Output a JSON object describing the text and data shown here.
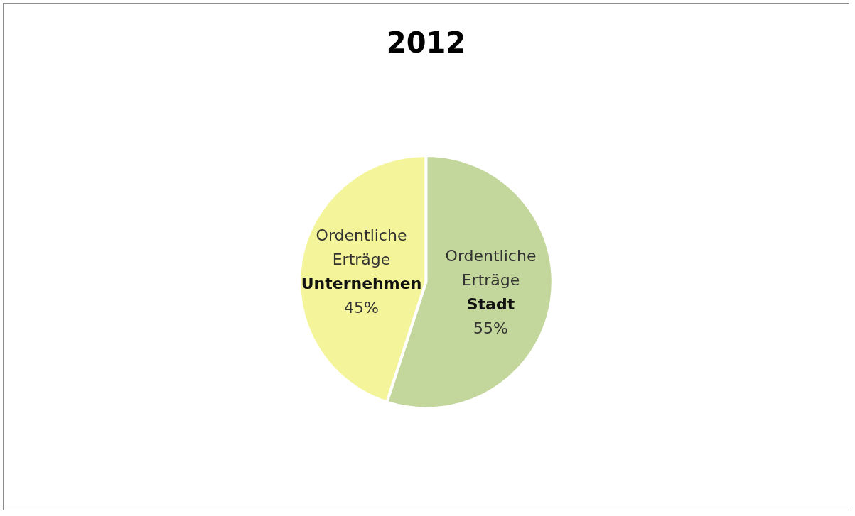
{
  "chart_data": {
    "type": "pie",
    "title": "2012",
    "categories": [
      "Ordentliche\nErträge\nUnternehmen",
      "Ordentliche\nErträge\nStadt"
    ],
    "values": [
      45,
      55
    ],
    "colors": [
      "#f4f59a",
      "#c3d69b"
    ],
    "value_labels": [
      "45%",
      "55%"
    ],
    "legend": false
  }
}
